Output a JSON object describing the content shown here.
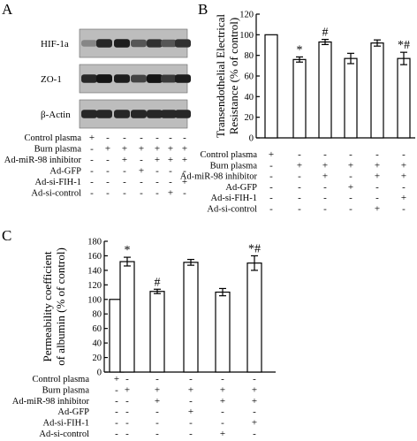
{
  "panel_a": {
    "letter": "A",
    "blots": [
      {
        "label": "HIF-1a",
        "intensity": [
          0.35,
          0.85,
          0.9,
          0.6,
          0.8,
          0.6,
          0.8
        ]
      },
      {
        "label": "ZO-1",
        "intensity": [
          0.85,
          0.95,
          0.9,
          0.7,
          0.95,
          0.75,
          0.9
        ]
      },
      {
        "label": "β-Actin",
        "intensity": [
          0.85,
          0.85,
          0.85,
          0.85,
          0.85,
          0.85,
          0.85
        ]
      }
    ],
    "conditions": [
      {
        "label": "Control plasma",
        "signs": [
          "+",
          "-",
          "-",
          "-",
          "-",
          "-",
          "-"
        ]
      },
      {
        "label": "Burn plasma",
        "signs": [
          "-",
          "+",
          "+",
          "+",
          "+",
          "+",
          "+"
        ]
      },
      {
        "label": "Ad-miR-98 inhibitor",
        "signs": [
          "-",
          "-",
          "+",
          "-",
          "+",
          "+",
          "+"
        ]
      },
      {
        "label": "Ad-GFP",
        "signs": [
          "-",
          "-",
          "-",
          "+",
          "-",
          "-",
          "-"
        ]
      },
      {
        "label": "Ad-si-FIH-1",
        "signs": [
          "-",
          "-",
          "-",
          "-",
          "-",
          "-",
          "+"
        ]
      },
      {
        "label": "Ad-si-control",
        "signs": [
          "-",
          "-",
          "-",
          "-",
          "-",
          "+",
          "-"
        ]
      }
    ]
  },
  "chart_data": [
    {
      "type": "bar",
      "panel": "B",
      "ylabel": "Transendothelial Electrical Resistance (% of control)",
      "ylabel_lines": [
        "Transendothelial Electrical",
        "Resistance (% of control)"
      ],
      "ylim": [
        0,
        120
      ],
      "yticks": [
        0,
        20,
        40,
        60,
        80,
        100,
        120
      ],
      "values": [
        100,
        76,
        93,
        77,
        92,
        77
      ],
      "errors": [
        0,
        2.5,
        2.5,
        5,
        3,
        6
      ],
      "annotations": [
        "",
        "*",
        "#",
        "",
        "",
        "*#"
      ],
      "conditions": [
        {
          "label": "Control plasma",
          "signs": [
            "+",
            "-",
            "-",
            "-",
            "-",
            "-"
          ]
        },
        {
          "label": "Burn plasma",
          "signs": [
            "-",
            "+",
            "+",
            "+",
            "+",
            "+"
          ]
        },
        {
          "label": "Ad-miR-98 inhibitor",
          "signs": [
            "-",
            "-",
            "+",
            "-",
            "+",
            "+"
          ]
        },
        {
          "label": "Ad-GFP",
          "signs": [
            "-",
            "-",
            "-",
            "+",
            "-",
            "-"
          ]
        },
        {
          "label": "Ad-si-FIH-1",
          "signs": [
            "-",
            "-",
            "-",
            "-",
            "-",
            "+"
          ]
        },
        {
          "label": "Ad-si-control",
          "signs": [
            "-",
            "-",
            "-",
            "-",
            "+",
            "-"
          ]
        }
      ]
    },
    {
      "type": "bar",
      "panel": "C",
      "ylabel": "Permeability coefficient of albumin (% of control)",
      "ylabel_lines": [
        "Permeability coefficient",
        "of albumin (% of control)"
      ],
      "ylim": [
        0,
        180
      ],
      "yticks": [
        0,
        20,
        40,
        60,
        80,
        100,
        120,
        140,
        160,
        180
      ],
      "values": [
        100,
        152,
        111,
        151,
        110,
        150
      ],
      "errors": [
        0,
        6,
        3,
        4,
        5,
        10
      ],
      "annotations": [
        "",
        "*",
        "#",
        "",
        "",
        "*#"
      ],
      "conditions": [
        {
          "label": "Control plasma",
          "signs": [
            "+",
            "-",
            "-",
            "-",
            "-",
            "-"
          ]
        },
        {
          "label": "Burn plasma",
          "signs": [
            "-",
            "+",
            "+",
            "+",
            "+",
            "+"
          ]
        },
        {
          "label": "Ad-miR-98 inhibitor",
          "signs": [
            "-",
            "-",
            "+",
            "-",
            "+",
            "+"
          ]
        },
        {
          "label": "Ad-GFP",
          "signs": [
            "-",
            "-",
            "-",
            "+",
            "-",
            "-"
          ]
        },
        {
          "label": "Ad-si-FIH-1",
          "signs": [
            "-",
            "-",
            "-",
            "-",
            "-",
            "+"
          ]
        },
        {
          "label": "Ad-si-control",
          "signs": [
            "-",
            "-",
            "-",
            "-",
            "+",
            "-"
          ]
        }
      ]
    }
  ]
}
